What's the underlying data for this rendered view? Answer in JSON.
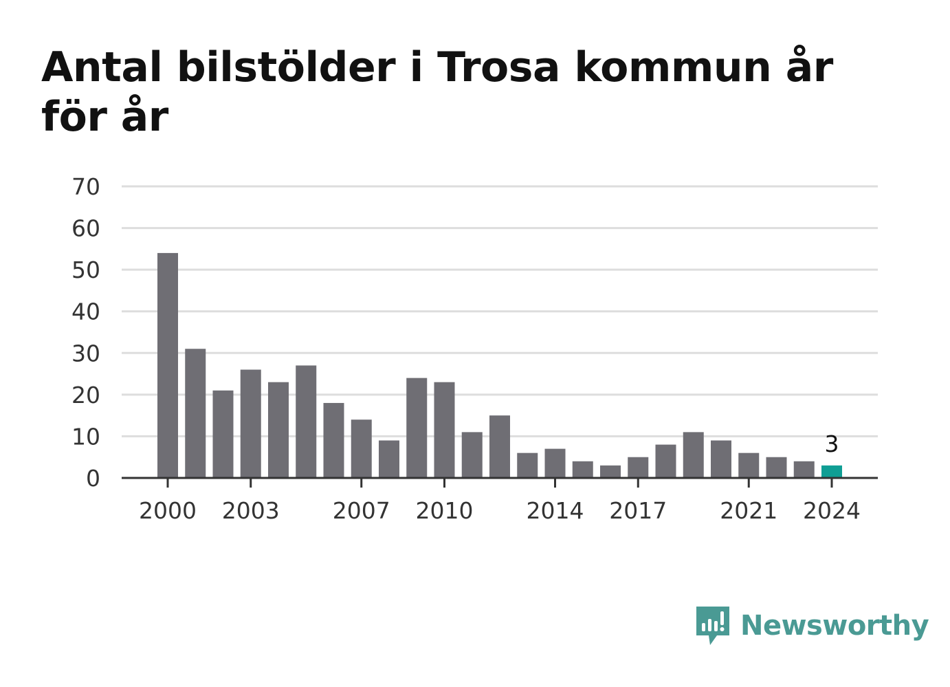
{
  "title": "Antal bilstölder i Trosa kommun år för år",
  "brand": {
    "name": "Newsworthy",
    "color": "#4a9a94",
    "icon": "bar-chart-speech-bubble-icon"
  },
  "colors": {
    "bar": "#6f6e74",
    "highlight": "#0f9e94",
    "grid": "#dddddd",
    "axis": "#333333"
  },
  "chart_data": {
    "type": "bar",
    "title": "Antal bilstölder i Trosa kommun år för år",
    "xlabel": "",
    "ylabel": "",
    "categories": [
      2000,
      2001,
      2002,
      2003,
      2004,
      2005,
      2006,
      2007,
      2008,
      2009,
      2010,
      2011,
      2012,
      2013,
      2014,
      2015,
      2016,
      2017,
      2018,
      2019,
      2020,
      2021,
      2022,
      2023,
      2024
    ],
    "values": [
      54,
      31,
      21,
      26,
      23,
      27,
      18,
      14,
      9,
      24,
      23,
      11,
      15,
      6,
      7,
      4,
      3,
      5,
      8,
      11,
      9,
      6,
      5,
      4,
      3
    ],
    "x_tick_labels": [
      "2000",
      "2003",
      "2007",
      "2010",
      "2014",
      "2017",
      "2021",
      "2024"
    ],
    "ylim": [
      0,
      70
    ],
    "y_ticks": [
      0,
      10,
      20,
      30,
      40,
      50,
      60,
      70
    ],
    "grid": true,
    "highlight": {
      "category": 2024,
      "label": "3"
    }
  }
}
